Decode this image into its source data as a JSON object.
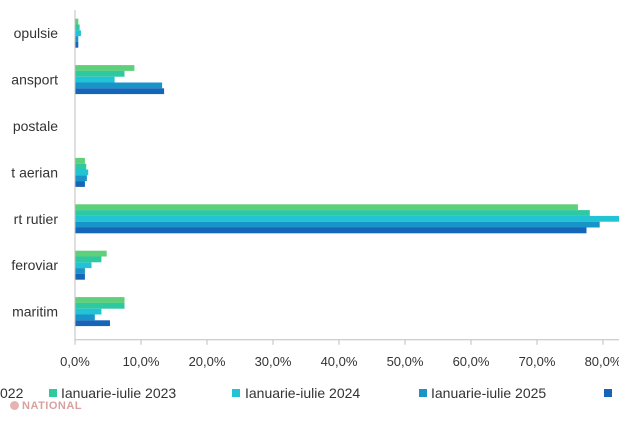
{
  "chart_data": {
    "type": "bar",
    "orientation": "horizontal",
    "categories": [
      "opulsie",
      "ansport",
      "postale",
      "t aerian",
      "rt rutier",
      "feroviar",
      "maritim"
    ],
    "series": [
      {
        "name": "",
        "color": "#5ecf7a",
        "values": [
          0.5,
          9.0,
          0.0,
          1.5,
          76.2,
          4.8,
          7.5
        ]
      },
      {
        "name": "Ianuarie-iulie 2023",
        "color": "#2ec9a0",
        "values": [
          0.7,
          7.5,
          0.0,
          1.7,
          78.0,
          4.0,
          7.5
        ]
      },
      {
        "name": "Ianuarie-iulie 2024",
        "color": "#22c3d4",
        "values": [
          0.9,
          6.0,
          0.0,
          2.0,
          82.6,
          2.5,
          4.0
        ]
      },
      {
        "name": "Ianuarie-iulie 2025",
        "color": "#1994c8",
        "values": [
          0.5,
          13.2,
          0.0,
          1.8,
          79.5,
          1.5,
          3.0
        ]
      },
      {
        "name": "",
        "color": "#1565b8",
        "values": [
          0.5,
          13.5,
          0.0,
          1.5,
          77.5,
          1.5,
          5.3
        ]
      }
    ],
    "xticks": [
      "0,0%",
      "10,0%",
      "20,0%",
      "30,0%",
      "40,0%",
      "50,0%",
      "60,0%",
      "70,0%",
      "80,0%"
    ],
    "xlim": [
      0,
      80
    ],
    "legend": {
      "placement": "bottom",
      "entries": [
        "022",
        "Ianuarie-iulie 2023",
        "Ianuarie-iulie 2024",
        "Ianuarie-iulie 2025",
        ""
      ]
    },
    "title": "",
    "xlabel": "",
    "ylabel": "",
    "grid": false
  },
  "watermark": "NATIONAL"
}
